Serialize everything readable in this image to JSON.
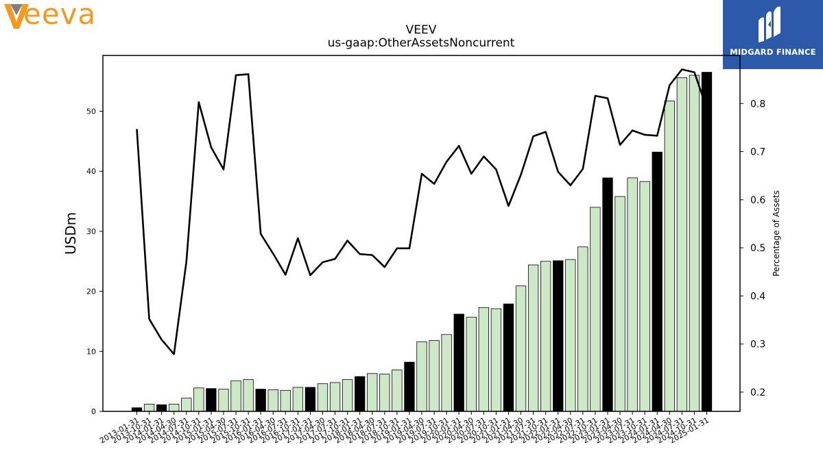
{
  "brand": {
    "left_logo_text": "eeva",
    "right_logo_text": "MIDGARD FINANCE",
    "veeva_orange": "#f39a1e",
    "veeva_gray": "#7f7f7f",
    "midgard_blue": "#2d5aa8"
  },
  "chart_data": {
    "type": "bar",
    "title": "VEEV",
    "subtitle": "us-gaap:OtherAssetsNoncurrent",
    "ylabel": "USDm",
    "y2label": "Percentage of Assets",
    "ylim": [
      0,
      59.3
    ],
    "y2lim": [
      0.16,
      0.9
    ],
    "yticks": [
      0,
      10,
      20,
      30,
      40,
      50
    ],
    "y2ticks": [
      0.2,
      0.3,
      0.4,
      0.5,
      0.6,
      0.7,
      0.8
    ],
    "grid": false,
    "colors": {
      "bar_fill": "#cde8c6",
      "bar_highlight": "#000000",
      "bar_edge": "#000000",
      "line": "#000000"
    },
    "categories": [
      "2013-01-31",
      "2013-10-31",
      "2014-01-31",
      "2014-04-30",
      "2014-07-31",
      "2014-10-31",
      "2015-01-31",
      "2015-04-30",
      "2015-07-31",
      "2015-10-31",
      "2016-01-31",
      "2016-04-30",
      "2016-07-31",
      "2016-10-31",
      "2017-01-31",
      "2017-04-30",
      "2017-07-31",
      "2017-10-31",
      "2018-01-31",
      "2018-04-30",
      "2018-07-31",
      "2018-10-31",
      "2019-01-31",
      "2019-04-30",
      "2019-07-31",
      "2019-10-31",
      "2020-01-31",
      "2020-04-30",
      "2020-07-31",
      "2020-10-31",
      "2021-01-31",
      "2021-04-30",
      "2021-07-31",
      "2021-10-31",
      "2022-01-31",
      "2022-04-30",
      "2022-07-31",
      "2022-10-31",
      "2023-01-31",
      "2023-04-30",
      "2023-07-31",
      "2023-10-31",
      "2024-01-31",
      "2024-04-30",
      "2024-07-31",
      "2024-10-31",
      "2025-01-31"
    ],
    "series": [
      {
        "type": "bar",
        "axis": "left",
        "values": [
          0.6,
          1.2,
          1.1,
          1.2,
          2.2,
          3.9,
          3.8,
          3.7,
          5.1,
          5.3,
          3.7,
          3.6,
          3.5,
          4.0,
          4.0,
          4.6,
          4.8,
          5.3,
          5.8,
          6.3,
          6.2,
          6.9,
          8.2,
          11.6,
          11.8,
          12.8,
          16.2,
          15.7,
          17.3,
          17.1,
          17.9,
          20.9,
          24.4,
          25.0,
          25.1,
          25.3,
          27.4,
          34.0,
          38.9,
          35.8,
          38.9,
          38.3,
          43.2,
          51.7,
          55.6,
          56.0,
          56.5
        ],
        "highlight": [
          1,
          0,
          1,
          0,
          0,
          0,
          1,
          0,
          0,
          0,
          1,
          0,
          0,
          0,
          1,
          0,
          0,
          0,
          1,
          0,
          0,
          0,
          1,
          0,
          0,
          0,
          1,
          0,
          0,
          0,
          1,
          0,
          0,
          0,
          1,
          0,
          0,
          0,
          1,
          0,
          0,
          0,
          1,
          0,
          0,
          0,
          1
        ]
      },
      {
        "type": "line",
        "axis": "right",
        "values": [
          0.747,
          0.352,
          0.309,
          0.279,
          0.471,
          0.803,
          0.709,
          0.663,
          0.859,
          0.861,
          0.529,
          0.488,
          0.444,
          0.52,
          0.443,
          0.47,
          0.477,
          0.515,
          0.487,
          0.485,
          0.46,
          0.499,
          0.499,
          0.654,
          0.633,
          0.679,
          0.712,
          0.654,
          0.69,
          0.663,
          0.587,
          0.652,
          0.732,
          0.741,
          0.658,
          0.63,
          0.664,
          0.816,
          0.811,
          0.714,
          0.744,
          0.735,
          0.733,
          0.838,
          0.871,
          0.865,
          0.79
        ]
      }
    ]
  }
}
